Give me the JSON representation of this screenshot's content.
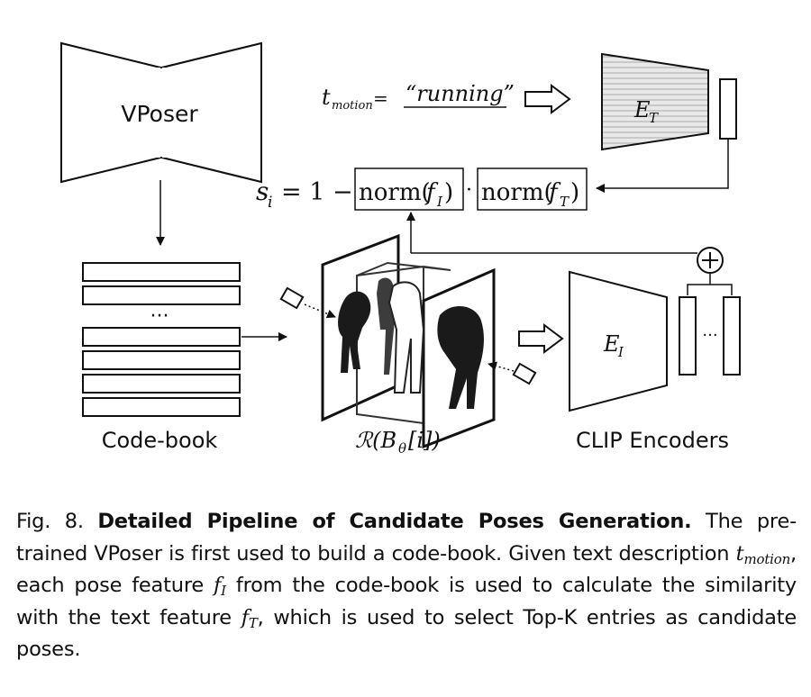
{
  "vposer_label": "VPoser",
  "codebook_label": "Code-book",
  "codebook_ellipsis": "···",
  "render_label": "ℛ(Bθ[i])",
  "clip_label": "CLIP Encoders",
  "text_encoder": "ET",
  "image_encoder": "EI",
  "motion_variable": "tmotion",
  "motion_text": "“running”",
  "similarity_formula": "si = 1 − norm(fI) · norm(fT)",
  "feature_ellipsis": "···",
  "concat_symbol": "⊕",
  "caption": {
    "fig_label": "Fig. 8.",
    "title": "Detailed Pipeline of Candidate Poses Generation.",
    "text_1": "The pre-trained VPoser is first used to build a code-book. Given text description",
    "t_motion": "tmotion",
    "text_2": ", each pose feature",
    "f_I": "fI",
    "text_3": "from the code-book is used to calculate the similarity with the text feature",
    "f_T": "fT",
    "text_4": ", which is used to select Top-K entries as candidate poses."
  }
}
